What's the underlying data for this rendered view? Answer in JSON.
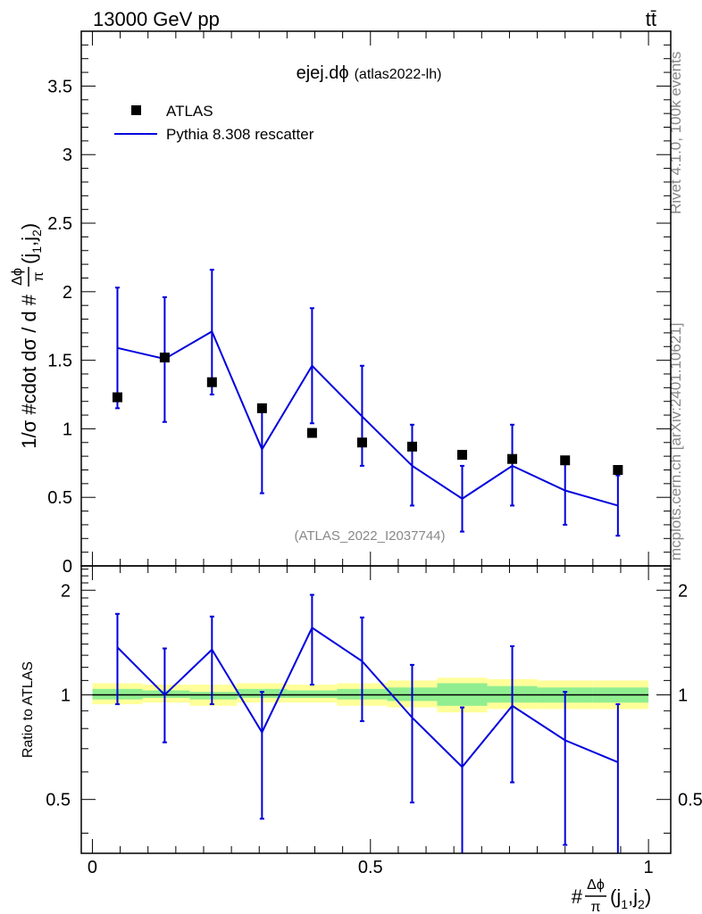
{
  "header": {
    "energy_label": "13000 GeV pp",
    "process_label": "tt̄"
  },
  "side_labels": {
    "rivet": "Rivet 4.1.0,  100k events",
    "mcplots": "mcplots.cern.ch [arXiv:2401.10621]"
  },
  "main_plot": {
    "title_main": "ejej.dϕ",
    "title_sub": "(atlas2022-lh)",
    "watermark": "(ATLAS_2022_I2037744)",
    "ylabel_prefix": "1/σ #cdot dσ / d #",
    "ylabel_frac_num": "Δϕ",
    "ylabel_frac_den": "π",
    "ylabel_suffix": "(j",
    "ylabel_sub1": "1",
    "ylabel_mid": ",j",
    "ylabel_sub2": "2",
    "ylabel_close": ")"
  },
  "ratio_plot": {
    "ylabel": "Ratio to ATLAS"
  },
  "xaxis": {
    "label_prefix": "#",
    "label_frac_num": "Δϕ",
    "label_frac_den": "π",
    "label_suffix": "(j",
    "label_sub1": "1",
    "label_mid": ",j",
    "label_sub2": "2",
    "label_close": ")"
  },
  "legend": {
    "data_label": "ATLAS",
    "mc_label": "Pythia 8.308 rescatter"
  },
  "colors": {
    "mc": "#0000dd",
    "data": "#000000",
    "band_inner": "#90ee90",
    "band_outer": "#ffff99"
  },
  "chart_data": [
    {
      "type": "scatter+line",
      "title": "ejej.dϕ (atlas2022-lh)",
      "xlabel": "#Δϕ/π(j1,j2)",
      "ylabel": "1/σ #cdot dσ / d #Δϕ/π(j1,j2)",
      "xlim": [
        -0.02,
        1.04
      ],
      "ylim": [
        0,
        3.9
      ],
      "yticks": [
        0,
        0.5,
        1,
        1.5,
        2,
        2.5,
        3,
        3.5
      ],
      "ytick_labels": [
        "0",
        "0.5",
        "1",
        "1.5",
        "2",
        "2.5",
        "3",
        "3.5"
      ],
      "x": [
        0.045,
        0.13,
        0.215,
        0.305,
        0.395,
        0.485,
        0.575,
        0.665,
        0.755,
        0.85,
        0.945
      ],
      "series": [
        {
          "name": "ATLAS",
          "values": [
            1.23,
            1.52,
            1.34,
            1.15,
            0.97,
            0.9,
            0.87,
            0.81,
            0.78,
            0.77,
            0.7
          ]
        },
        {
          "name": "Pythia 8.308 rescatter",
          "values": [
            1.59,
            1.51,
            1.71,
            0.85,
            1.46,
            1.09,
            0.73,
            0.49,
            0.73,
            0.55,
            0.44
          ],
          "err_low": [
            1.15,
            1.05,
            1.25,
            0.53,
            1.04,
            0.73,
            0.44,
            0.25,
            0.44,
            0.3,
            0.22
          ],
          "err_high": [
            2.03,
            1.96,
            2.16,
            1.15,
            1.88,
            1.46,
            1.03,
            0.73,
            1.03,
            0.79,
            0.66
          ]
        }
      ]
    },
    {
      "type": "ratio",
      "ylabel": "Ratio to ATLAS",
      "xlim": [
        -0.02,
        1.04
      ],
      "ylim": [
        0.35,
        2.35
      ],
      "yticks": [
        0.5,
        1,
        2
      ],
      "ytick_labels": [
        "0.5",
        "1",
        "2"
      ],
      "xticks": [
        0,
        0.5,
        1
      ],
      "xtick_labels": [
        "0",
        "0.5",
        "1"
      ],
      "x": [
        0.045,
        0.13,
        0.215,
        0.305,
        0.395,
        0.485,
        0.575,
        0.665,
        0.755,
        0.85,
        0.945
      ],
      "bin_edges": [
        0.0,
        0.09,
        0.175,
        0.26,
        0.35,
        0.44,
        0.53,
        0.62,
        0.71,
        0.8,
        0.9,
        1.0
      ],
      "band_inner": [
        [
          0.97,
          1.04
        ],
        [
          0.98,
          1.03
        ],
        [
          0.97,
          1.02
        ],
        [
          0.98,
          1.04
        ],
        [
          0.98,
          1.03
        ],
        [
          0.97,
          1.04
        ],
        [
          0.96,
          1.05
        ],
        [
          0.93,
          1.08
        ],
        [
          0.95,
          1.06
        ],
        [
          0.95,
          1.05
        ],
        [
          0.95,
          1.05
        ]
      ],
      "band_outer": [
        [
          0.94,
          1.08
        ],
        [
          0.95,
          1.07
        ],
        [
          0.93,
          1.07
        ],
        [
          0.95,
          1.08
        ],
        [
          0.95,
          1.07
        ],
        [
          0.93,
          1.08
        ],
        [
          0.92,
          1.1
        ],
        [
          0.89,
          1.12
        ],
        [
          0.91,
          1.11
        ],
        [
          0.91,
          1.1
        ],
        [
          0.91,
          1.1
        ]
      ],
      "series": [
        {
          "name": "Pythia 8.308 rescatter",
          "values": [
            1.37,
            1.0,
            1.35,
            0.78,
            1.56,
            1.25,
            0.86,
            0.62,
            0.93,
            0.74,
            0.64
          ],
          "err_low": [
            0.94,
            0.73,
            0.94,
            0.44,
            1.07,
            0.84,
            0.49,
            0.33,
            0.56,
            0.37,
            0.33
          ],
          "err_high": [
            1.71,
            1.36,
            1.68,
            1.02,
            1.94,
            1.67,
            1.22,
            0.92,
            1.38,
            1.02,
            0.94
          ]
        }
      ]
    }
  ]
}
